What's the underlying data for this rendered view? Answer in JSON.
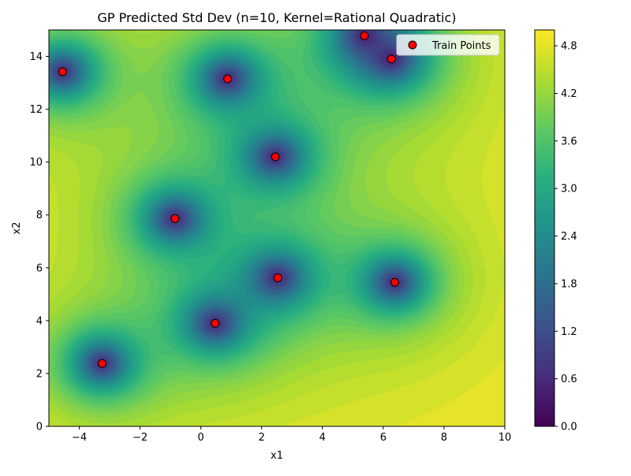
{
  "chart_data": {
    "type": "contour",
    "title": "GP Predicted Std Dev (n=10, Kernel=Rational Quadratic)",
    "xlabel": "x1",
    "ylabel": "x2",
    "xlim": [
      -5,
      10
    ],
    "ylim": [
      0,
      15
    ],
    "x_ticks": [
      -4,
      -2,
      0,
      2,
      4,
      6,
      8,
      10
    ],
    "x_tick_labels": [
      "−4",
      "−2",
      "0",
      "2",
      "4",
      "6",
      "8",
      "10"
    ],
    "y_ticks": [
      0,
      2,
      4,
      6,
      8,
      10,
      12,
      14
    ],
    "y_tick_labels": [
      "0",
      "2",
      "4",
      "6",
      "8",
      "10",
      "12",
      "14"
    ],
    "colorbar": {
      "range": [
        0.0,
        5.0
      ],
      "ticks": [
        0.0,
        0.6,
        1.2,
        1.8,
        2.4,
        3.0,
        3.6,
        4.2,
        4.8
      ],
      "tick_labels": [
        "0.0",
        "0.6",
        "1.2",
        "1.8",
        "2.4",
        "3.0",
        "3.6",
        "4.2",
        "4.8"
      ],
      "colormap": "viridis"
    },
    "grid": false,
    "legend": {
      "placement": "top-right",
      "entries": [
        "Train Points"
      ]
    },
    "series": [
      {
        "name": "Train Points",
        "type": "scatter",
        "color": "#ff0000",
        "edge_color": "#000000",
        "points": [
          {
            "x": -4.55,
            "y": 13.42
          },
          {
            "x": 0.88,
            "y": 13.15
          },
          {
            "x": 5.38,
            "y": 14.78
          },
          {
            "x": 6.27,
            "y": 13.9
          },
          {
            "x": 2.45,
            "y": 10.2
          },
          {
            "x": -0.85,
            "y": 7.86
          },
          {
            "x": 2.53,
            "y": 5.62
          },
          {
            "x": 6.38,
            "y": 5.45
          },
          {
            "x": 0.47,
            "y": 3.9
          },
          {
            "x": -3.25,
            "y": 2.38
          }
        ]
      }
    ]
  }
}
